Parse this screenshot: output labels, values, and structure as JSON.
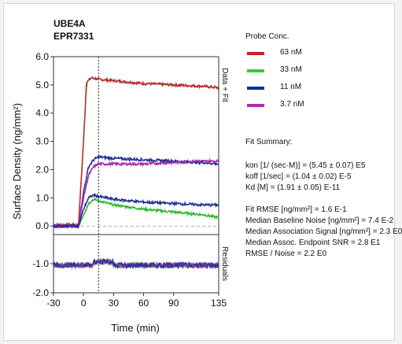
{
  "chart_data": {
    "type": "line",
    "title": "UBE4A",
    "subtitle": "EPR7331",
    "xlabel": "Time (min)",
    "ylabel": "Surface Density (ng/mm²)",
    "top_panel_label": "Data + Fit",
    "bottom_panel_label": "Residuals",
    "xlim": [
      -30,
      135
    ],
    "x_ticks": [
      "-30",
      "0",
      "30",
      "60",
      "90",
      "135"
    ],
    "x_tick_values": [
      -30,
      0,
      30,
      60,
      90,
      135
    ],
    "top_ylim": [
      -0.3,
      6.0
    ],
    "top_y_ticks": [
      "6.0",
      "5.0",
      "4.0",
      "3.0",
      "2.0",
      "1.0",
      "0.0"
    ],
    "top_y_tick_values": [
      6,
      5,
      4,
      3,
      2,
      1,
      0
    ],
    "bottom_ylim": [
      -2.0,
      0.0
    ],
    "bottom_y_ticks": [
      "-1.0",
      "-2.0"
    ],
    "bottom_y_tick_values": [
      -1,
      -2
    ],
    "injection_end_x": 15,
    "series": [
      {
        "name": "63 nM",
        "color": "#cc2222",
        "x": [
          -30,
          -5,
          0,
          3,
          8,
          15,
          30,
          60,
          90,
          120,
          135
        ],
        "y": [
          0.05,
          0.05,
          3.0,
          5.1,
          5.25,
          5.2,
          5.15,
          5.05,
          5.0,
          4.95,
          4.9
        ]
      },
      {
        "name": "33 nM",
        "color": "#33cc33",
        "x": [
          -30,
          -5,
          0,
          5,
          10,
          15,
          30,
          60,
          90,
          120,
          135
        ],
        "y": [
          0.0,
          0.0,
          0.4,
          0.8,
          0.95,
          0.9,
          0.75,
          0.6,
          0.5,
          0.4,
          0.3
        ]
      },
      {
        "name": "11 nM",
        "color": "#1a2aa0",
        "x": [
          -30,
          -5,
          0,
          5,
          10,
          15,
          30,
          60,
          90,
          120,
          135
        ],
        "y": [
          0.0,
          0.0,
          1.2,
          2.1,
          2.35,
          2.45,
          2.4,
          2.35,
          2.3,
          2.25,
          2.2
        ]
      },
      {
        "name": "3.7 nM",
        "color": "#b02ab8",
        "x": [
          -30,
          -5,
          0,
          5,
          10,
          15,
          30,
          60,
          90,
          120,
          135
        ],
        "y": [
          0.0,
          0.0,
          1.0,
          1.8,
          2.1,
          2.2,
          2.2,
          2.2,
          2.25,
          2.3,
          2.3
        ]
      },
      {
        "name": "11 nM low",
        "color": "#1a2aa0",
        "legend": false,
        "x": [
          -30,
          -5,
          0,
          5,
          10,
          15,
          30,
          60,
          90,
          120,
          135
        ],
        "y": [
          0.0,
          0.0,
          0.6,
          1.0,
          1.1,
          1.05,
          0.95,
          0.85,
          0.8,
          0.75,
          0.75
        ]
      }
    ],
    "legend_position": "right"
  },
  "panel": {
    "probe_header": "Probe Conc.",
    "legend": [
      {
        "label": "63 nM",
        "color": "#cc2222"
      },
      {
        "label": "33 nM",
        "color": "#33cc33"
      },
      {
        "label": "11 nM",
        "color": "#1a2aa0"
      },
      {
        "label": "3.7 nM",
        "color": "#b02ab8"
      }
    ],
    "fit_header": "Fit Summary:",
    "fit_lines": [
      "kon  [1/ (sec·M)]  =  (5.45 ± 0.07) E5",
      "koff  [1/sec]  =  (1.04 ± 0.02) E-5",
      "Kd  [M]  =  (1.91 ± 0.05) E-11"
    ],
    "stats_lines": [
      "Fit RMSE [ng/mm²]  =  1.6 E-1",
      "Median Baseline Noise [ng/mm²]  =  7.4 E-2",
      "Median Association Signal [ng/mm²]  =  2.3 E0",
      "Median Assoc. Endpoint SNR  =  2.8 E1",
      "RMSE / Noise  =  2.2 E0"
    ]
  }
}
